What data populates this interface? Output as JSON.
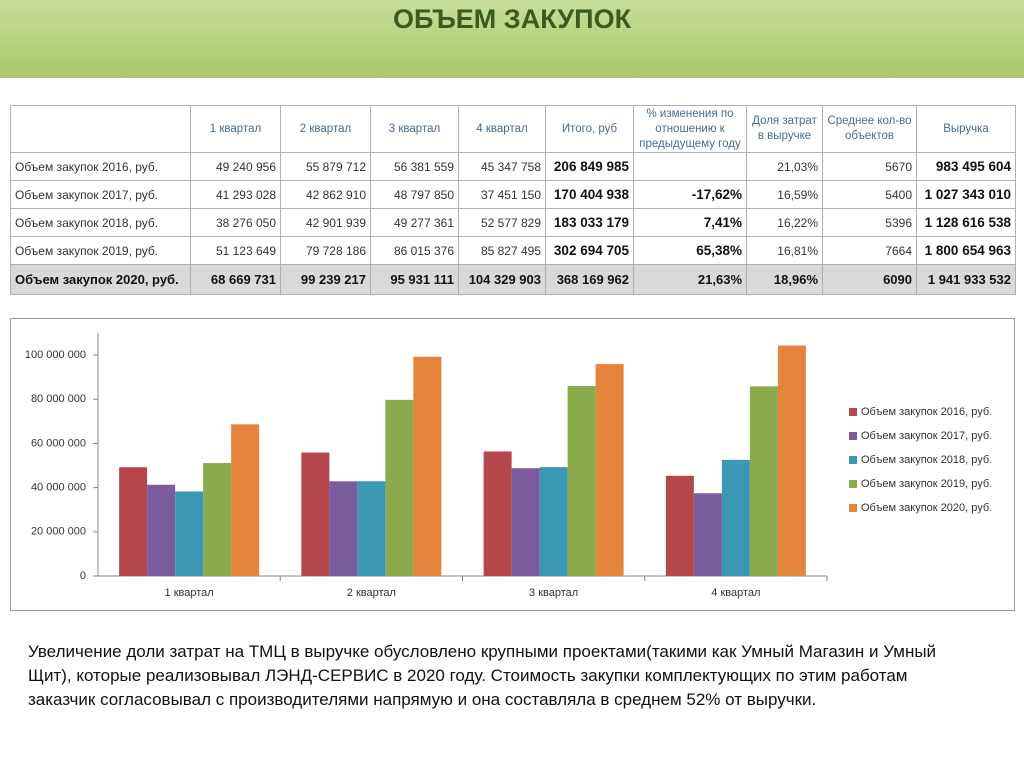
{
  "header": {
    "title": "ОБЪЕМ ЗАКУПОК"
  },
  "table": {
    "header": [
      null,
      "1 квартал",
      "2 квартал",
      "3 квартал",
      "4 квартал",
      "Итого, руб",
      "% изменения по отношению к предыдущему году",
      "Доля затрат в выручке",
      "Среднее кол-во объектов",
      "Выручка"
    ],
    "rows": [
      [
        "Объем закупок 2016, руб.",
        "49 240 956",
        "55 879 712",
        "56 381 559",
        "45 347 758",
        "206 849 985",
        null,
        "21,03%",
        "5670",
        "983 495 604"
      ],
      [
        "Объем закупок 2017, руб.",
        "41 293 028",
        "42 862 910",
        "48 797 850",
        "37 451 150",
        "170 404 938",
        "-17,62%",
        "16,59%",
        "5400",
        "1 027 343 010"
      ],
      [
        "Объем закупок 2018, руб.",
        "38 276 050",
        "42 901 939",
        "49 277 361",
        "52 577 829",
        "183 033 179",
        "7,41%",
        "16,22%",
        "5396",
        "1 128 616 538"
      ],
      [
        "Объем закупок 2019, руб.",
        "51 123 649",
        "79 728 186",
        "86 015 376",
        "85 827 495",
        "302 694 705",
        "65,38%",
        "16,81%",
        "7664",
        "1 800 654 963"
      ],
      [
        "Объем закупок 2020, руб.",
        "68 669 731",
        "99 239 217",
        "95 931 111",
        "104 329 903",
        "368 169 962",
        "21,63%",
        "18,96%",
        "6090",
        "1 941 933 532"
      ]
    ]
  },
  "chart_data": {
    "type": "bar",
    "categories": [
      "1 квартал",
      "2 квартал",
      "3 квартал",
      "4 квартал"
    ],
    "series": [
      {
        "name": "Объем закупок 2016, руб.",
        "color": "#b5464b",
        "values": [
          49240956,
          55879712,
          56381559,
          45347758
        ]
      },
      {
        "name": "Объем закупок 2017, руб.",
        "color": "#7a5c9e",
        "values": [
          41293028,
          42862910,
          48797850,
          37451150
        ]
      },
      {
        "name": "Объем закупок 2018, руб.",
        "color": "#3a98b5",
        "values": [
          38276050,
          42901939,
          49277361,
          52577829
        ]
      },
      {
        "name": "Объем закупок 2019, руб.",
        "color": "#8aab4b",
        "values": [
          51123649,
          79728186,
          86015376,
          85827495
        ]
      },
      {
        "name": "Объем закупок 2020, руб.",
        "color": "#e5843c",
        "values": [
          68669731,
          99239217,
          95931111,
          104329903
        ]
      }
    ],
    "ylim": [
      0,
      110000000
    ],
    "yticks": [
      0,
      {
        "value": 20000000,
        "label": "20 000 000"
      },
      {
        "value": 40000000,
        "label": "40 000 000"
      },
      {
        "value": 60000000,
        "label": "60 000 000"
      },
      {
        "value": 80000000,
        "label": "80 000 000"
      },
      {
        "value": 100000000,
        "label": "100 000 000"
      }
    ],
    "legend": "right"
  },
  "text": "Увеличение доли затрат на ТМЦ в выручке обусловлено крупными проектами(такими как Умный Магазин и Умный Щит), которые реализовывал ЛЭНД-СЕРВИС в 2020 году. Стоимость закупки комплектующих по этим работам заказчик согласовывал с производителями напрямую и она составляла в среднем 52% от выручки."
}
